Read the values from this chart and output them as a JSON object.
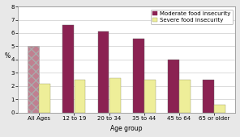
{
  "categories": [
    "All Ages",
    "12 to 19",
    "20 to 34",
    "35 to 44",
    "45 to 64",
    "65 or older"
  ],
  "moderate": [
    5.0,
    6.6,
    6.1,
    5.6,
    4.0,
    2.5
  ],
  "severe": [
    2.2,
    2.5,
    2.6,
    2.5,
    2.5,
    0.6
  ],
  "moderate_color": "#8B2252",
  "moderate_hatch_color": "#C08090",
  "severe_color": "#EEEE99",
  "moderate_label": "Moderate food insecurity",
  "severe_label": "Severe food insecurity",
  "xlabel": "Age group",
  "ylabel": "%",
  "ylim": [
    0,
    8
  ],
  "yticks": [
    0,
    1,
    2,
    3,
    4,
    5,
    6,
    7,
    8
  ],
  "plot_bg": "#ffffff",
  "fig_bg": "#e8e8e8",
  "axis_fontsize": 5.5,
  "tick_fontsize": 5.0,
  "legend_fontsize": 5.0,
  "bar_width": 0.32,
  "bar_gap": 0.01
}
